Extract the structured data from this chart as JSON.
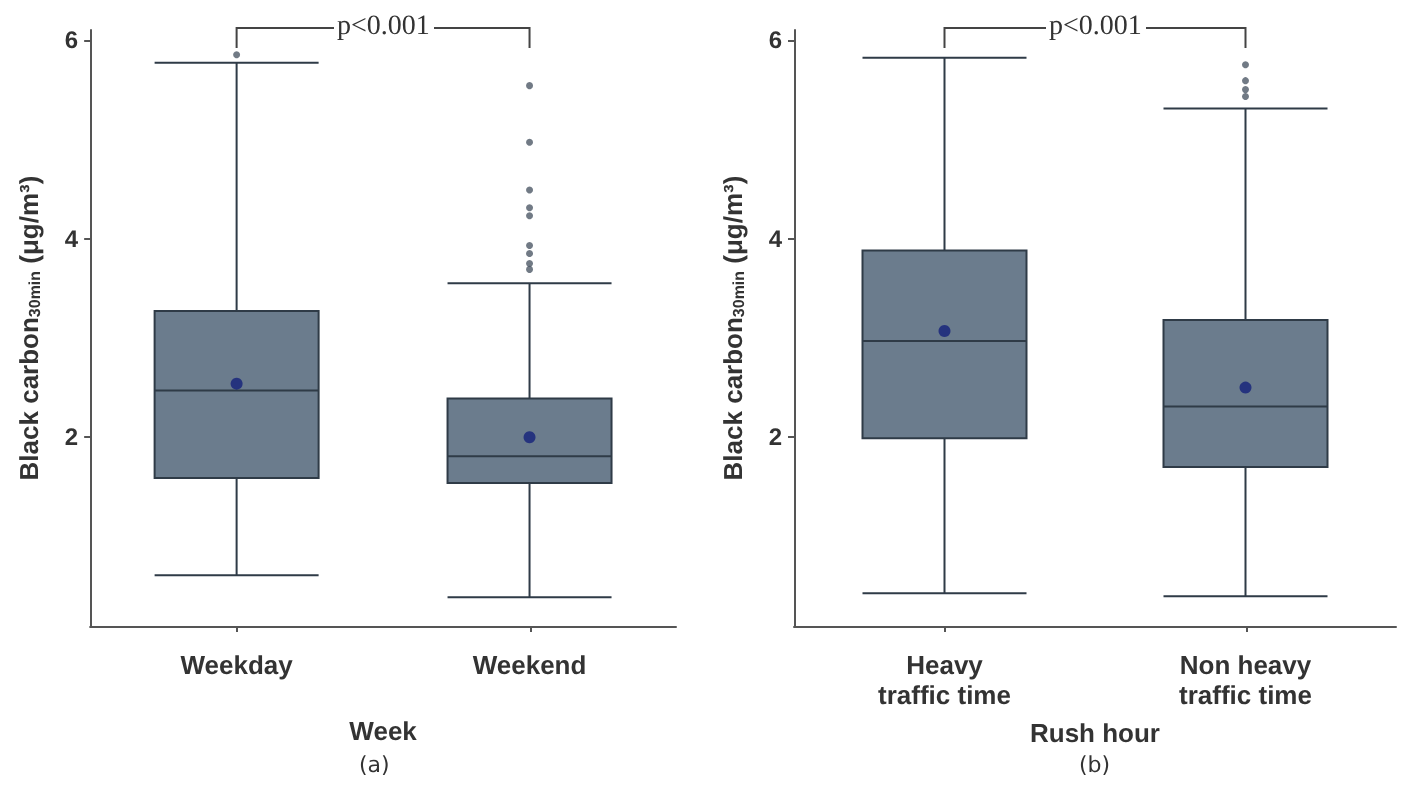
{
  "chart_data": [
    {
      "type": "box",
      "xlabel": "Week",
      "ylabel": "Black carbon$_{30min}$ (μg/m³)",
      "categories": [
        "Weekday",
        "Weekend"
      ],
      "color": "#6b7c8d",
      "boxes": [
        {
          "low": 0.61,
          "q1": 1.59,
          "median": 2.47,
          "q3": 3.27,
          "high": 5.77,
          "mean": 2.54,
          "outliers": [
            5.85
          ]
        },
        {
          "low": 0.39,
          "q1": 1.54,
          "median": 1.81,
          "q3": 2.39,
          "high": 3.55,
          "mean": 2.0,
          "outliers": [
            5.54,
            4.97,
            4.49,
            4.31,
            4.23,
            3.93,
            3.85,
            3.75,
            3.69
          ]
        }
      ],
      "ylim": [
        0.1,
        6.1
      ],
      "yticks": [
        2,
        4,
        6
      ],
      "grid": false,
      "annotations": [
        "p<0.001",
        "(a)"
      ]
    },
    {
      "type": "box",
      "xlabel": "Rush hour",
      "ylabel": "Black carbon$_{30min}$ (μg/m³)",
      "categories": [
        "Heavy\ntraffic time",
        "Non heavy\ntraffic time"
      ],
      "color": "#6b7c8d",
      "boxes": [
        {
          "low": 0.43,
          "q1": 1.99,
          "median": 2.97,
          "q3": 3.88,
          "high": 5.82,
          "mean": 3.07
        },
        {
          "low": 0.4,
          "q1": 1.7,
          "median": 2.31,
          "q3": 3.18,
          "high": 5.31,
          "mean": 2.5,
          "outliers": [
            5.75,
            5.59,
            5.5,
            5.43
          ]
        }
      ],
      "ylim": [
        0.1,
        6.1
      ],
      "yticks": [
        2,
        4,
        6
      ],
      "grid": false,
      "annotations": [
        "p<0.001",
        "(b)"
      ]
    }
  ]
}
